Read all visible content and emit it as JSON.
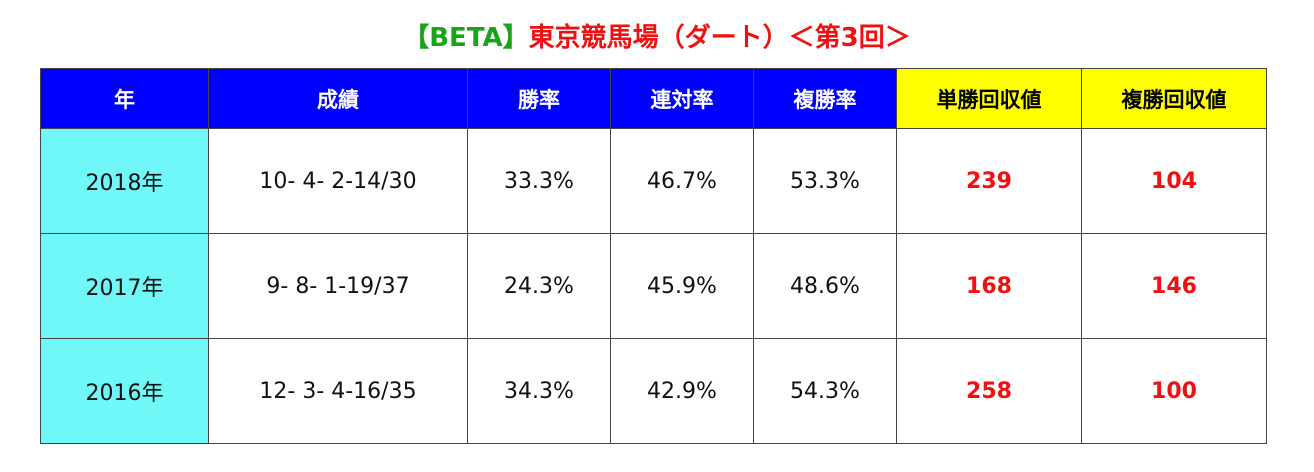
{
  "title": {
    "prefix": "【BETA】",
    "main": "東京競馬場（ダート）＜第3回＞"
  },
  "table": {
    "header": [
      "年",
      "成績",
      "勝率",
      "連対率",
      "複勝率",
      "単勝回収値",
      "複勝回収値"
    ],
    "rows": [
      [
        "2018年",
        "10- 4- 2-14/30",
        "33.3%",
        "46.7%",
        "53.3%",
        "239",
        "104"
      ],
      [
        "2017年",
        "9- 8- 1-19/37",
        "24.3%",
        "45.9%",
        "48.6%",
        "168",
        "146"
      ],
      [
        "2016年",
        "12- 3- 4-16/35",
        "34.3%",
        "42.9%",
        "54.3%",
        "258",
        "100"
      ]
    ]
  }
}
